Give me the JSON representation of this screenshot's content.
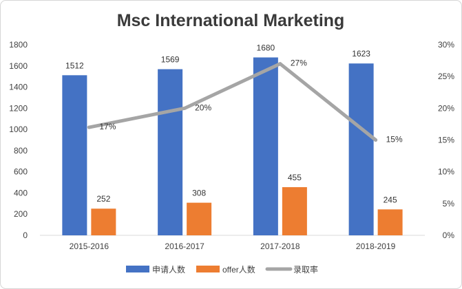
{
  "chart_data": {
    "type": "bar",
    "title": "Msc International Marketing",
    "categories": [
      "2015-2016",
      "2016-2017",
      "2017-2018",
      "2018-2019"
    ],
    "series": [
      {
        "name": "申请人数",
        "kind": "bar",
        "axis": "left",
        "color": "#4472c4",
        "values": [
          1512,
          1569,
          1680,
          1623
        ]
      },
      {
        "name": "offer人数",
        "kind": "bar",
        "axis": "left",
        "color": "#ed7d31",
        "values": [
          252,
          308,
          455,
          245
        ]
      },
      {
        "name": "录取率",
        "kind": "line",
        "axis": "right",
        "color": "#a5a5a5",
        "values": [
          17,
          20,
          27,
          15
        ],
        "labels": [
          "17%",
          "20%",
          "27%",
          "15%"
        ]
      }
    ],
    "y_left": {
      "min": 0,
      "max": 1800,
      "ticks": [
        0,
        200,
        400,
        600,
        800,
        1000,
        1200,
        1400,
        1600,
        1800
      ]
    },
    "y_right": {
      "min": 0,
      "max": 30,
      "ticks": [
        0,
        5,
        10,
        15,
        20,
        25,
        30
      ],
      "tick_labels": [
        "0%",
        "5%",
        "10%",
        "15%",
        "20%",
        "25%",
        "30%"
      ]
    },
    "grid": false,
    "legend": "bottom"
  }
}
